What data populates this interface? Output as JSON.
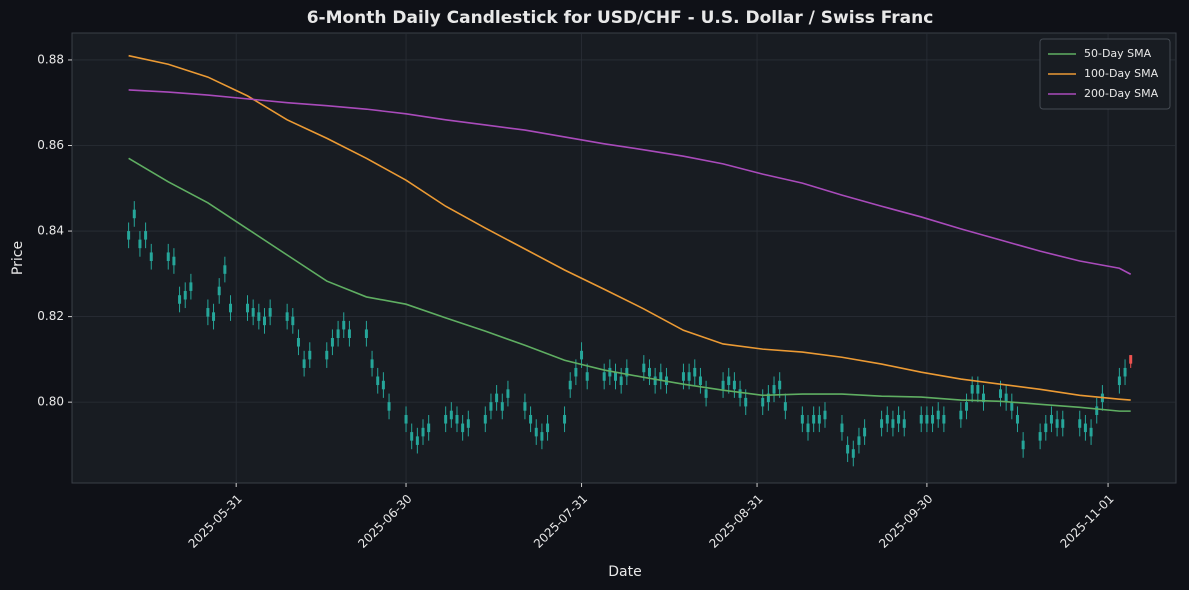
{
  "chart_data": {
    "type": "candlestick",
    "title": "6-Month Daily Candlestick for USD/CHF - U.S. Dollar / Swiss Franc",
    "x_label": "Date",
    "y_label": "Price",
    "x": [
      "2025-05-12",
      "2025-05-13",
      "2025-05-14",
      "2025-05-15",
      "2025-05-16",
      "2025-05-19",
      "2025-05-20",
      "2025-05-21",
      "2025-05-22",
      "2025-05-23",
      "2025-05-26",
      "2025-05-27",
      "2025-05-28",
      "2025-05-29",
      "2025-05-30",
      "2025-06-02",
      "2025-06-03",
      "2025-06-04",
      "2025-06-05",
      "2025-06-06",
      "2025-06-09",
      "2025-06-10",
      "2025-06-11",
      "2025-06-12",
      "2025-06-13",
      "2025-06-16",
      "2025-06-17",
      "2025-06-18",
      "2025-06-19",
      "2025-06-20",
      "2025-06-23",
      "2025-06-24",
      "2025-06-25",
      "2025-06-26",
      "2025-06-27",
      "2025-06-30",
      "2025-07-01",
      "2025-07-02",
      "2025-07-03",
      "2025-07-04",
      "2025-07-07",
      "2025-07-08",
      "2025-07-09",
      "2025-07-10",
      "2025-07-11",
      "2025-07-14",
      "2025-07-15",
      "2025-07-16",
      "2025-07-17",
      "2025-07-18",
      "2025-07-21",
      "2025-07-22",
      "2025-07-23",
      "2025-07-24",
      "2025-07-25",
      "2025-07-28",
      "2025-07-29",
      "2025-07-30",
      "2025-07-31",
      "2025-08-01",
      "2025-08-04",
      "2025-08-05",
      "2025-08-06",
      "2025-08-07",
      "2025-08-08",
      "2025-08-11",
      "2025-08-12",
      "2025-08-13",
      "2025-08-14",
      "2025-08-15",
      "2025-08-18",
      "2025-08-19",
      "2025-08-20",
      "2025-08-21",
      "2025-08-22",
      "2025-08-25",
      "2025-08-26",
      "2025-08-27",
      "2025-08-28",
      "2025-08-29",
      "2025-09-01",
      "2025-09-02",
      "2025-09-03",
      "2025-09-04",
      "2025-09-05",
      "2025-09-08",
      "2025-09-09",
      "2025-09-10",
      "2025-09-11",
      "2025-09-12",
      "2025-09-15",
      "2025-09-16",
      "2025-09-17",
      "2025-09-18",
      "2025-09-19",
      "2025-09-22",
      "2025-09-23",
      "2025-09-24",
      "2025-09-25",
      "2025-09-26",
      "2025-09-29",
      "2025-09-30",
      "2025-10-01",
      "2025-10-02",
      "2025-10-03",
      "2025-10-06",
      "2025-10-07",
      "2025-10-08",
      "2025-10-09",
      "2025-10-10",
      "2025-10-13",
      "2025-10-14",
      "2025-10-15",
      "2025-10-16",
      "2025-10-17",
      "2025-10-20",
      "2025-10-21",
      "2025-10-22",
      "2025-10-23",
      "2025-10-24",
      "2025-10-27",
      "2025-10-28",
      "2025-10-29",
      "2025-10-30",
      "2025-10-31",
      "2025-11-03",
      "2025-11-04",
      "2025-11-05"
    ],
    "open": [
      0.838,
      0.843,
      0.836,
      0.838,
      0.833,
      0.833,
      0.832,
      0.823,
      0.824,
      0.826,
      0.82,
      0.819,
      0.825,
      0.83,
      0.821,
      0.821,
      0.82,
      0.819,
      0.818,
      0.82,
      0.819,
      0.818,
      0.813,
      0.808,
      0.81,
      0.81,
      0.813,
      0.815,
      0.817,
      0.815,
      0.815,
      0.808,
      0.804,
      0.803,
      0.798,
      0.795,
      0.791,
      0.79,
      0.792,
      0.793,
      0.795,
      0.796,
      0.795,
      0.793,
      0.794,
      0.795,
      0.798,
      0.8,
      0.798,
      0.801,
      0.798,
      0.795,
      0.792,
      0.791,
      0.793,
      0.795,
      0.803,
      0.806,
      0.81,
      0.805,
      0.805,
      0.806,
      0.805,
      0.804,
      0.806,
      0.807,
      0.806,
      0.804,
      0.805,
      0.804,
      0.805,
      0.805,
      0.806,
      0.804,
      0.801,
      0.803,
      0.804,
      0.803,
      0.801,
      0.799,
      0.799,
      0.8,
      0.802,
      0.803,
      0.798,
      0.795,
      0.793,
      0.795,
      0.795,
      0.796,
      0.793,
      0.788,
      0.787,
      0.79,
      0.792,
      0.794,
      0.795,
      0.794,
      0.795,
      0.794,
      0.795,
      0.795,
      0.795,
      0.796,
      0.795,
      0.796,
      0.798,
      0.802,
      0.802,
      0.8,
      0.801,
      0.8,
      0.798,
      0.795,
      0.789,
      0.791,
      0.793,
      0.795,
      0.794,
      0.794,
      0.794,
      0.793,
      0.792,
      0.797,
      0.8,
      0.804,
      0.806,
      0.811
    ],
    "high": [
      0.842,
      0.847,
      0.84,
      0.842,
      0.837,
      0.837,
      0.836,
      0.827,
      0.828,
      0.83,
      0.824,
      0.823,
      0.829,
      0.834,
      0.825,
      0.825,
      0.824,
      0.823,
      0.822,
      0.824,
      0.823,
      0.822,
      0.817,
      0.812,
      0.814,
      0.814,
      0.817,
      0.819,
      0.821,
      0.819,
      0.819,
      0.812,
      0.808,
      0.807,
      0.802,
      0.799,
      0.795,
      0.794,
      0.796,
      0.797,
      0.799,
      0.8,
      0.799,
      0.797,
      0.798,
      0.799,
      0.802,
      0.804,
      0.802,
      0.805,
      0.802,
      0.799,
      0.796,
      0.795,
      0.797,
      0.799,
      0.807,
      0.81,
      0.814,
      0.809,
      0.809,
      0.81,
      0.809,
      0.808,
      0.81,
      0.811,
      0.81,
      0.808,
      0.809,
      0.808,
      0.809,
      0.809,
      0.81,
      0.808,
      0.805,
      0.807,
      0.808,
      0.807,
      0.805,
      0.803,
      0.803,
      0.804,
      0.806,
      0.807,
      0.802,
      0.799,
      0.797,
      0.799,
      0.799,
      0.8,
      0.797,
      0.792,
      0.791,
      0.794,
      0.796,
      0.798,
      0.799,
      0.798,
      0.799,
      0.798,
      0.799,
      0.799,
      0.799,
      0.8,
      0.799,
      0.8,
      0.802,
      0.806,
      0.806,
      0.804,
      0.805,
      0.804,
      0.802,
      0.799,
      0.793,
      0.795,
      0.797,
      0.799,
      0.798,
      0.798,
      0.798,
      0.797,
      0.796,
      0.801,
      0.804,
      0.808,
      0.81,
      0.811
    ],
    "low": [
      0.836,
      0.841,
      0.834,
      0.836,
      0.831,
      0.831,
      0.83,
      0.821,
      0.822,
      0.824,
      0.818,
      0.817,
      0.823,
      0.828,
      0.819,
      0.819,
      0.818,
      0.817,
      0.816,
      0.818,
      0.817,
      0.816,
      0.811,
      0.806,
      0.808,
      0.808,
      0.811,
      0.813,
      0.815,
      0.813,
      0.813,
      0.806,
      0.802,
      0.801,
      0.796,
      0.793,
      0.789,
      0.788,
      0.79,
      0.791,
      0.793,
      0.794,
      0.793,
      0.791,
      0.792,
      0.793,
      0.796,
      0.798,
      0.796,
      0.799,
      0.796,
      0.793,
      0.79,
      0.789,
      0.791,
      0.793,
      0.801,
      0.804,
      0.808,
      0.803,
      0.803,
      0.804,
      0.803,
      0.802,
      0.804,
      0.805,
      0.804,
      0.802,
      0.803,
      0.802,
      0.803,
      0.803,
      0.804,
      0.802,
      0.799,
      0.801,
      0.802,
      0.801,
      0.799,
      0.797,
      0.797,
      0.798,
      0.8,
      0.801,
      0.796,
      0.793,
      0.791,
      0.793,
      0.793,
      0.794,
      0.791,
      0.786,
      0.785,
      0.788,
      0.79,
      0.792,
      0.793,
      0.792,
      0.793,
      0.792,
      0.793,
      0.793,
      0.793,
      0.794,
      0.793,
      0.794,
      0.796,
      0.8,
      0.8,
      0.798,
      0.799,
      0.798,
      0.796,
      0.793,
      0.787,
      0.789,
      0.791,
      0.793,
      0.792,
      0.792,
      0.792,
      0.791,
      0.79,
      0.795,
      0.798,
      0.802,
      0.804,
      0.808
    ],
    "close": [
      0.84,
      0.845,
      0.838,
      0.84,
      0.835,
      0.835,
      0.834,
      0.825,
      0.826,
      0.828,
      0.822,
      0.821,
      0.827,
      0.832,
      0.823,
      0.823,
      0.822,
      0.821,
      0.82,
      0.822,
      0.821,
      0.82,
      0.815,
      0.81,
      0.812,
      0.812,
      0.815,
      0.817,
      0.819,
      0.817,
      0.817,
      0.81,
      0.806,
      0.805,
      0.8,
      0.797,
      0.793,
      0.792,
      0.794,
      0.795,
      0.797,
      0.798,
      0.797,
      0.795,
      0.796,
      0.797,
      0.8,
      0.802,
      0.8,
      0.803,
      0.8,
      0.797,
      0.794,
      0.793,
      0.795,
      0.797,
      0.805,
      0.808,
      0.812,
      0.807,
      0.807,
      0.808,
      0.807,
      0.806,
      0.808,
      0.809,
      0.808,
      0.806,
      0.807,
      0.806,
      0.807,
      0.807,
      0.808,
      0.806,
      0.803,
      0.805,
      0.806,
      0.805,
      0.803,
      0.801,
      0.801,
      0.802,
      0.804,
      0.805,
      0.8,
      0.797,
      0.795,
      0.797,
      0.797,
      0.798,
      0.795,
      0.79,
      0.789,
      0.792,
      0.794,
      0.796,
      0.797,
      0.796,
      0.797,
      0.796,
      0.797,
      0.797,
      0.797,
      0.798,
      0.797,
      0.798,
      0.8,
      0.804,
      0.804,
      0.802,
      0.803,
      0.802,
      0.8,
      0.797,
      0.791,
      0.793,
      0.795,
      0.797,
      0.796,
      0.796,
      0.796,
      0.795,
      0.794,
      0.799,
      0.802,
      0.806,
      0.808,
      0.809
    ],
    "up_color": "#26a69a",
    "down_color": "#ef5350",
    "series": [
      {
        "name": "50-Day SMA",
        "color": "#5fae62",
        "x": [
          "2025-05-12",
          "2025-05-19",
          "2025-05-26",
          "2025-06-02",
          "2025-06-09",
          "2025-06-16",
          "2025-06-23",
          "2025-06-30",
          "2025-07-07",
          "2025-07-14",
          "2025-07-21",
          "2025-07-28",
          "2025-08-04",
          "2025-08-11",
          "2025-08-18",
          "2025-08-25",
          "2025-09-01",
          "2025-09-08",
          "2025-09-15",
          "2025-09-22",
          "2025-09-29",
          "2025-10-06",
          "2025-10-13",
          "2025-10-20",
          "2025-10-27",
          "2025-11-03",
          "2025-11-05"
        ],
        "values": [
          0.857,
          0.8515,
          0.8466,
          0.8405,
          0.8344,
          0.8283,
          0.8246,
          0.8229,
          0.8197,
          0.8166,
          0.8133,
          0.8098,
          0.8075,
          0.8058,
          0.8042,
          0.8028,
          0.8016,
          0.8019,
          0.8019,
          0.8014,
          0.8012,
          0.8005,
          0.8002,
          0.7995,
          0.7988,
          0.7979,
          0.7979
        ]
      },
      {
        "name": "100-Day SMA",
        "color": "#eb9a34",
        "x": [
          "2025-05-12",
          "2025-05-19",
          "2025-05-26",
          "2025-06-02",
          "2025-06-09",
          "2025-06-16",
          "2025-06-23",
          "2025-06-30",
          "2025-07-07",
          "2025-07-14",
          "2025-07-21",
          "2025-07-28",
          "2025-08-04",
          "2025-08-11",
          "2025-08-18",
          "2025-08-25",
          "2025-09-01",
          "2025-09-08",
          "2025-09-15",
          "2025-09-22",
          "2025-09-29",
          "2025-10-06",
          "2025-10-13",
          "2025-10-20",
          "2025-10-27",
          "2025-11-03",
          "2025-11-05"
        ],
        "values": [
          0.881,
          0.879,
          0.876,
          0.8716,
          0.866,
          0.8617,
          0.857,
          0.8519,
          0.8458,
          0.8407,
          0.8358,
          0.8309,
          0.8264,
          0.8218,
          0.8168,
          0.8136,
          0.8124,
          0.8117,
          0.8105,
          0.8089,
          0.807,
          0.8054,
          0.8042,
          0.803,
          0.8016,
          0.8007,
          0.8005
        ]
      },
      {
        "name": "200-Day SMA",
        "color": "#a94bbb",
        "x": [
          "2025-05-12",
          "2025-05-19",
          "2025-05-26",
          "2025-06-02",
          "2025-06-09",
          "2025-06-16",
          "2025-06-23",
          "2025-06-30",
          "2025-07-07",
          "2025-07-14",
          "2025-07-21",
          "2025-07-28",
          "2025-08-04",
          "2025-08-11",
          "2025-08-18",
          "2025-08-25",
          "2025-09-01",
          "2025-09-08",
          "2025-09-15",
          "2025-09-22",
          "2025-09-29",
          "2025-10-06",
          "2025-10-13",
          "2025-10-20",
          "2025-10-27",
          "2025-11-03",
          "2025-11-05"
        ],
        "values": [
          0.873,
          0.8725,
          0.8718,
          0.8709,
          0.87,
          0.8693,
          0.8685,
          0.8674,
          0.866,
          0.8648,
          0.8636,
          0.862,
          0.8604,
          0.859,
          0.8575,
          0.8557,
          0.8533,
          0.8512,
          0.8484,
          0.8458,
          0.8433,
          0.8405,
          0.8379,
          0.8353,
          0.833,
          0.8313,
          0.8299
        ]
      }
    ],
    "xlim": [
      "2025-05-02",
      "2025-11-13"
    ],
    "xticks": [
      "2025-05-31",
      "2025-06-30",
      "2025-07-31",
      "2025-08-31",
      "2025-09-30",
      "2025-11-01"
    ],
    "ylim": [
      0.7811,
      0.8863
    ],
    "yticks": [
      {
        "value": 0.8,
        "label": "0.80"
      },
      {
        "value": 0.82,
        "label": "0.82"
      },
      {
        "value": 0.84,
        "label": "0.84"
      },
      {
        "value": 0.86,
        "label": "0.86"
      },
      {
        "value": 0.88,
        "label": "0.88"
      }
    ],
    "grid": true,
    "legend": "upper right"
  }
}
